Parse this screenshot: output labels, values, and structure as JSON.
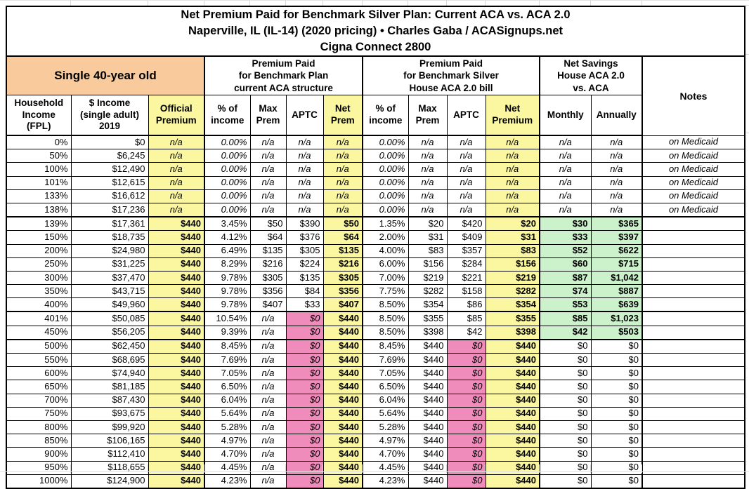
{
  "title": {
    "line1": "Net Premium Paid for Benchmark Silver Plan: Current ACA vs. ACA 2.0",
    "line2": "Naperville, IL (IL-14) (2020 pricing) • Charles Gaba / ACASignups.net",
    "line3": "Cigna Connect 2800"
  },
  "groups": {
    "demographic": "Single 40-year old",
    "aca": [
      "Premium Paid",
      "for Benchmark Plan",
      "current ACA structure"
    ],
    "house": [
      "Premium Paid",
      "for Benchmark Silver",
      "House ACA 2.0 bill"
    ],
    "savings": [
      "Net Savings",
      "House ACA 2.0",
      "vs. ACA"
    ],
    "notes": "Notes"
  },
  "columns": {
    "fpl": [
      "Household",
      "Income",
      "(FPL)"
    ],
    "income": [
      "$ Income",
      "(single adult)",
      "2019"
    ],
    "official": [
      "Official",
      "Premium"
    ],
    "pct": [
      "% of",
      "income"
    ],
    "max": [
      "Max",
      "Prem"
    ],
    "aptc": "APTC",
    "netPrem": [
      "Net",
      "Prem"
    ],
    "netPremium": [
      "Net",
      "Premium"
    ],
    "monthly": "Monthly",
    "annually": "Annually"
  },
  "colors": {
    "orange": "#f9cb9c",
    "yellow": "#fbf7a0",
    "pink": "#f08cbc",
    "green": "#ccf2cc",
    "grid": "#d8d8d8",
    "border": "#000000"
  },
  "rows": [
    {
      "group": "medicaid",
      "fpl": "0%",
      "income": "$0",
      "official": "n/a",
      "aca_pct": "0.00%",
      "aca_max": "n/a",
      "aca_aptc": "n/a",
      "aca_net": "n/a",
      "house_pct": "0.00%",
      "house_max": "n/a",
      "house_aptc": "n/a",
      "house_net": "n/a",
      "monthly": "n/a",
      "annually": "n/a",
      "note": "on Medicaid"
    },
    {
      "group": "medicaid",
      "fpl": "50%",
      "income": "$6,245",
      "official": "n/a",
      "aca_pct": "0.00%",
      "aca_max": "n/a",
      "aca_aptc": "n/a",
      "aca_net": "n/a",
      "house_pct": "0.00%",
      "house_max": "n/a",
      "house_aptc": "n/a",
      "house_net": "n/a",
      "monthly": "n/a",
      "annually": "n/a",
      "note": "on Medicaid"
    },
    {
      "group": "medicaid",
      "fpl": "100%",
      "income": "$12,490",
      "official": "n/a",
      "aca_pct": "0.00%",
      "aca_max": "n/a",
      "aca_aptc": "n/a",
      "aca_net": "n/a",
      "house_pct": "0.00%",
      "house_max": "n/a",
      "house_aptc": "n/a",
      "house_net": "n/a",
      "monthly": "n/a",
      "annually": "n/a",
      "note": "on Medicaid"
    },
    {
      "group": "medicaid",
      "fpl": "101%",
      "income": "$12,615",
      "official": "n/a",
      "aca_pct": "0.00%",
      "aca_max": "n/a",
      "aca_aptc": "n/a",
      "aca_net": "n/a",
      "house_pct": "0.00%",
      "house_max": "n/a",
      "house_aptc": "n/a",
      "house_net": "n/a",
      "monthly": "n/a",
      "annually": "n/a",
      "note": "on Medicaid"
    },
    {
      "group": "medicaid",
      "fpl": "133%",
      "income": "$16,612",
      "official": "n/a",
      "aca_pct": "0.00%",
      "aca_max": "n/a",
      "aca_aptc": "n/a",
      "aca_net": "n/a",
      "house_pct": "0.00%",
      "house_max": "n/a",
      "house_aptc": "n/a",
      "house_net": "n/a",
      "monthly": "n/a",
      "annually": "n/a",
      "note": "on Medicaid"
    },
    {
      "group": "medicaid",
      "sep": true,
      "fpl": "138%",
      "income": "$17,236",
      "official": "n/a",
      "aca_pct": "0.00%",
      "aca_max": "n/a",
      "aca_aptc": "n/a",
      "aca_net": "n/a",
      "house_pct": "0.00%",
      "house_max": "n/a",
      "house_aptc": "n/a",
      "house_net": "n/a",
      "monthly": "n/a",
      "annually": "n/a",
      "note": "on Medicaid"
    },
    {
      "group": "sub",
      "fpl": "139%",
      "income": "$17,361",
      "official": "$440",
      "aca_pct": "3.45%",
      "aca_max": "$50",
      "aca_aptc": "$390",
      "aca_net": "$50",
      "house_pct": "1.35%",
      "house_max": "$20",
      "house_aptc": "$420",
      "house_net": "$20",
      "monthly": "$30",
      "annually": "$365",
      "note": ""
    },
    {
      "group": "sub",
      "fpl": "150%",
      "income": "$18,735",
      "official": "$440",
      "aca_pct": "4.12%",
      "aca_max": "$64",
      "aca_aptc": "$376",
      "aca_net": "$64",
      "house_pct": "2.00%",
      "house_max": "$31",
      "house_aptc": "$409",
      "house_net": "$31",
      "monthly": "$33",
      "annually": "$397",
      "note": ""
    },
    {
      "group": "sub",
      "fpl": "200%",
      "income": "$24,980",
      "official": "$440",
      "aca_pct": "6.49%",
      "aca_max": "$135",
      "aca_aptc": "$305",
      "aca_net": "$135",
      "house_pct": "4.00%",
      "house_max": "$83",
      "house_aptc": "$357",
      "house_net": "$83",
      "monthly": "$52",
      "annually": "$622",
      "note": ""
    },
    {
      "group": "sub",
      "fpl": "250%",
      "income": "$31,225",
      "official": "$440",
      "aca_pct": "8.29%",
      "aca_max": "$216",
      "aca_aptc": "$224",
      "aca_net": "$216",
      "house_pct": "6.00%",
      "house_max": "$156",
      "house_aptc": "$284",
      "house_net": "$156",
      "monthly": "$60",
      "annually": "$715",
      "note": ""
    },
    {
      "group": "sub",
      "fpl": "300%",
      "income": "$37,470",
      "official": "$440",
      "aca_pct": "9.78%",
      "aca_max": "$305",
      "aca_aptc": "$135",
      "aca_net": "$305",
      "house_pct": "7.00%",
      "house_max": "$219",
      "house_aptc": "$221",
      "house_net": "$219",
      "monthly": "$87",
      "annually": "$1,042",
      "note": ""
    },
    {
      "group": "sub",
      "fpl": "350%",
      "income": "$43,715",
      "official": "$440",
      "aca_pct": "9.78%",
      "aca_max": "$356",
      "aca_aptc": "$84",
      "aca_net": "$356",
      "house_pct": "7.75%",
      "house_max": "$282",
      "house_aptc": "$158",
      "house_net": "$282",
      "monthly": "$74",
      "annually": "$887",
      "note": ""
    },
    {
      "group": "sub",
      "sep": true,
      "fpl": "400%",
      "income": "$49,960",
      "official": "$440",
      "aca_pct": "9.78%",
      "aca_max": "$407",
      "aca_aptc": "$33",
      "aca_net": "$407",
      "house_pct": "8.50%",
      "house_max": "$354",
      "house_aptc": "$86",
      "house_net": "$354",
      "monthly": "$53",
      "annually": "$639",
      "note": ""
    },
    {
      "group": "aca0",
      "fpl": "401%",
      "income": "$50,085",
      "official": "$440",
      "aca_pct": "10.54%",
      "aca_max": "n/a",
      "aca_aptc": "$0",
      "aca_net": "$440",
      "house_pct": "8.50%",
      "house_max": "$355",
      "house_aptc": "$85",
      "house_net": "$355",
      "monthly": "$85",
      "annually": "$1,023",
      "note": ""
    },
    {
      "group": "aca0",
      "sep": true,
      "fpl": "450%",
      "income": "$56,205",
      "official": "$440",
      "aca_pct": "9.39%",
      "aca_max": "n/a",
      "aca_aptc": "$0",
      "aca_net": "$440",
      "house_pct": "8.50%",
      "house_max": "$398",
      "house_aptc": "$42",
      "house_net": "$398",
      "monthly": "$42",
      "annually": "$503",
      "note": ""
    },
    {
      "group": "none",
      "fpl": "500%",
      "income": "$62,450",
      "official": "$440",
      "aca_pct": "8.45%",
      "aca_max": "n/a",
      "aca_aptc": "$0",
      "aca_net": "$440",
      "house_pct": "8.45%",
      "house_max": "$440",
      "house_aptc": "$0",
      "house_net": "$440",
      "monthly": "$0",
      "annually": "$0",
      "note": ""
    },
    {
      "group": "none",
      "fpl": "550%",
      "income": "$68,695",
      "official": "$440",
      "aca_pct": "7.69%",
      "aca_max": "n/a",
      "aca_aptc": "$0",
      "aca_net": "$440",
      "house_pct": "7.69%",
      "house_max": "$440",
      "house_aptc": "$0",
      "house_net": "$440",
      "monthly": "$0",
      "annually": "$0",
      "note": ""
    },
    {
      "group": "none",
      "fpl": "600%",
      "income": "$74,940",
      "official": "$440",
      "aca_pct": "7.05%",
      "aca_max": "n/a",
      "aca_aptc": "$0",
      "aca_net": "$440",
      "house_pct": "7.05%",
      "house_max": "$440",
      "house_aptc": "$0",
      "house_net": "$440",
      "monthly": "$0",
      "annually": "$0",
      "note": ""
    },
    {
      "group": "none",
      "fpl": "650%",
      "income": "$81,185",
      "official": "$440",
      "aca_pct": "6.50%",
      "aca_max": "n/a",
      "aca_aptc": "$0",
      "aca_net": "$440",
      "house_pct": "6.50%",
      "house_max": "$440",
      "house_aptc": "$0",
      "house_net": "$440",
      "monthly": "$0",
      "annually": "$0",
      "note": ""
    },
    {
      "group": "none",
      "fpl": "700%",
      "income": "$87,430",
      "official": "$440",
      "aca_pct": "6.04%",
      "aca_max": "n/a",
      "aca_aptc": "$0",
      "aca_net": "$440",
      "house_pct": "6.04%",
      "house_max": "$440",
      "house_aptc": "$0",
      "house_net": "$440",
      "monthly": "$0",
      "annually": "$0",
      "note": ""
    },
    {
      "group": "none",
      "fpl": "750%",
      "income": "$93,675",
      "official": "$440",
      "aca_pct": "5.64%",
      "aca_max": "n/a",
      "aca_aptc": "$0",
      "aca_net": "$440",
      "house_pct": "5.64%",
      "house_max": "$440",
      "house_aptc": "$0",
      "house_net": "$440",
      "monthly": "$0",
      "annually": "$0",
      "note": ""
    },
    {
      "group": "none",
      "fpl": "800%",
      "income": "$99,920",
      "official": "$440",
      "aca_pct": "5.28%",
      "aca_max": "n/a",
      "aca_aptc": "$0",
      "aca_net": "$440",
      "house_pct": "5.28%",
      "house_max": "$440",
      "house_aptc": "$0",
      "house_net": "$440",
      "monthly": "$0",
      "annually": "$0",
      "note": ""
    },
    {
      "group": "none",
      "fpl": "850%",
      "income": "$106,165",
      "official": "$440",
      "aca_pct": "4.97%",
      "aca_max": "n/a",
      "aca_aptc": "$0",
      "aca_net": "$440",
      "house_pct": "4.97%",
      "house_max": "$440",
      "house_aptc": "$0",
      "house_net": "$440",
      "monthly": "$0",
      "annually": "$0",
      "note": ""
    },
    {
      "group": "none",
      "fpl": "900%",
      "income": "$112,410",
      "official": "$440",
      "aca_pct": "4.70%",
      "aca_max": "n/a",
      "aca_aptc": "$0",
      "aca_net": "$440",
      "house_pct": "4.70%",
      "house_max": "$440",
      "house_aptc": "$0",
      "house_net": "$440",
      "monthly": "$0",
      "annually": "$0",
      "note": ""
    },
    {
      "group": "none",
      "fpl": "950%",
      "income": "$118,655",
      "official": "$440",
      "aca_pct": "4.45%",
      "aca_max": "n/a",
      "aca_aptc": "$0",
      "aca_net": "$440",
      "house_pct": "4.45%",
      "house_max": "$440",
      "house_aptc": "$0",
      "house_net": "$440",
      "monthly": "$0",
      "annually": "$0",
      "note": ""
    },
    {
      "group": "none",
      "fpl": "1000%",
      "income": "$124,900",
      "official": "$440",
      "aca_pct": "4.23%",
      "aca_max": "n/a",
      "aca_aptc": "$0",
      "aca_net": "$440",
      "house_pct": "4.23%",
      "house_max": "$440",
      "house_aptc": "$0",
      "house_net": "$440",
      "monthly": "$0",
      "annually": "$0",
      "note": ""
    }
  ]
}
